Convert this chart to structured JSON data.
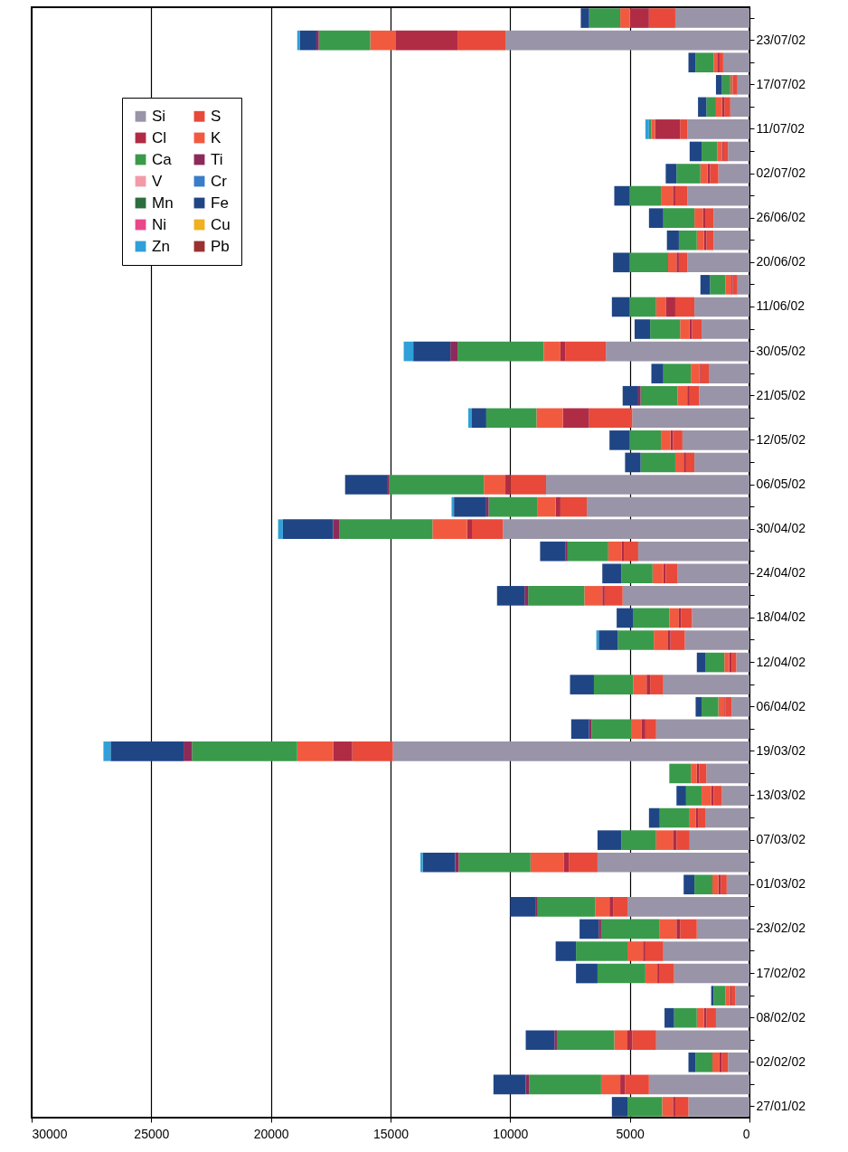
{
  "chart_data": {
    "type": "bar",
    "orientation": "horizontal",
    "stacked": true,
    "categories": [
      null,
      "23/07/02",
      null,
      "17/07/02",
      null,
      "11/07/02",
      null,
      "02/07/02",
      null,
      "26/06/02",
      null,
      "20/06/02",
      null,
      "11/06/02",
      null,
      "30/05/02",
      null,
      "21/05/02",
      null,
      "12/05/02",
      null,
      "06/05/02",
      null,
      "30/04/02",
      null,
      "24/04/02",
      null,
      "18/04/02",
      null,
      "12/04/02",
      null,
      "06/04/02",
      null,
      "19/03/02",
      null,
      "13/03/02",
      null,
      "07/03/02",
      null,
      "01/03/02",
      null,
      "23/02/02",
      null,
      "17/02/02",
      null,
      "08/02/02",
      null,
      "02/02/02",
      null,
      "27/01/02"
    ],
    "series": [
      {
        "name": "Si",
        "color": "#9a94a8",
        "values": [
          3100,
          10200,
          1100,
          500,
          800,
          2600,
          900,
          1300,
          2600,
          1500,
          1500,
          2600,
          500,
          2300,
          2000,
          6000,
          1700,
          2100,
          4900,
          2800,
          2300,
          8500,
          6800,
          10300,
          4650,
          3000,
          5300,
          2400,
          2700,
          550,
          3600,
          750,
          3900,
          14900,
          1800,
          1150,
          1850,
          2500,
          6350,
          950,
          5100,
          2200,
          3600,
          3150,
          600,
          1400,
          3900,
          900,
          4200,
          2550
        ]
      },
      {
        "name": "S",
        "color": "#e8493a",
        "values": [
          1100,
          2000,
          150,
          150,
          250,
          300,
          200,
          350,
          500,
          350,
          300,
          350,
          200,
          800,
          400,
          1700,
          350,
          400,
          1800,
          400,
          350,
          1500,
          1100,
          1300,
          600,
          500,
          750,
          450,
          600,
          200,
          550,
          250,
          450,
          1700,
          300,
          350,
          300,
          550,
          1200,
          250,
          600,
          700,
          750,
          600,
          150,
          400,
          1000,
          250,
          1000,
          550
        ]
      },
      {
        "name": "Cl",
        "color": "#b02c45",
        "values": [
          800,
          2600,
          100,
          50,
          100,
          1050,
          50,
          100,
          100,
          100,
          100,
          100,
          50,
          400,
          100,
          200,
          50,
          100,
          1100,
          100,
          100,
          200,
          200,
          200,
          100,
          100,
          100,
          100,
          100,
          100,
          150,
          50,
          150,
          800,
          100,
          100,
          100,
          150,
          200,
          100,
          150,
          150,
          100,
          100,
          50,
          100,
          200,
          100,
          200,
          100
        ]
      },
      {
        "name": "K",
        "color": "#f25a40",
        "values": [
          400,
          1050,
          150,
          100,
          250,
          150,
          200,
          300,
          500,
          350,
          300,
          350,
          250,
          400,
          400,
          700,
          350,
          400,
          1100,
          400,
          350,
          900,
          750,
          1450,
          550,
          450,
          750,
          400,
          600,
          200,
          550,
          250,
          450,
          1500,
          250,
          400,
          250,
          700,
          1400,
          250,
          600,
          700,
          650,
          500,
          200,
          300,
          550,
          300,
          800,
          450
        ]
      },
      {
        "name": "Ca",
        "color": "#3a9a4c",
        "values": [
          1300,
          2150,
          750,
          350,
          400,
          100,
          650,
          1000,
          1300,
          1300,
          750,
          1600,
          650,
          1100,
          1250,
          3600,
          1150,
          1550,
          2100,
          1300,
          1450,
          3950,
          2050,
          3900,
          1700,
          1300,
          2350,
          1500,
          1500,
          800,
          1650,
          700,
          1650,
          4400,
          900,
          650,
          1250,
          1450,
          3000,
          750,
          2400,
          2450,
          2150,
          2000,
          500,
          950,
          2400,
          700,
          3000,
          1450
        ]
      },
      {
        "name": "Ti",
        "color": "#8c2a5a",
        "values": [
          0,
          100,
          0,
          0,
          0,
          0,
          0,
          0,
          0,
          0,
          0,
          0,
          0,
          0,
          0,
          300,
          0,
          100,
          0,
          0,
          0,
          100,
          100,
          250,
          100,
          0,
          150,
          0,
          0,
          0,
          0,
          0,
          100,
          350,
          0,
          0,
          0,
          0,
          150,
          0,
          100,
          100,
          0,
          0,
          0,
          0,
          100,
          0,
          150,
          0
        ]
      },
      {
        "name": "V",
        "color": "#f29aa8",
        "values": [
          0,
          0,
          0,
          0,
          0,
          0,
          0,
          0,
          0,
          0,
          0,
          0,
          0,
          0,
          0,
          0,
          0,
          0,
          0,
          0,
          0,
          0,
          0,
          0,
          0,
          0,
          0,
          0,
          0,
          0,
          0,
          0,
          0,
          0,
          0,
          0,
          0,
          0,
          0,
          0,
          0,
          0,
          0,
          0,
          0,
          0,
          0,
          0,
          0,
          0
        ]
      },
      {
        "name": "Cr",
        "color": "#3a7cc8",
        "values": [
          0,
          0,
          0,
          0,
          0,
          0,
          0,
          0,
          0,
          0,
          0,
          0,
          0,
          0,
          0,
          0,
          0,
          0,
          0,
          0,
          0,
          0,
          0,
          0,
          0,
          0,
          0,
          0,
          0,
          0,
          0,
          0,
          0,
          0,
          0,
          0,
          0,
          0,
          0,
          0,
          0,
          0,
          0,
          0,
          0,
          0,
          0,
          0,
          0,
          0
        ]
      },
      {
        "name": "Mn",
        "color": "#2c6e3e",
        "values": [
          0,
          0,
          0,
          0,
          0,
          0,
          0,
          0,
          0,
          0,
          0,
          0,
          0,
          0,
          0,
          0,
          0,
          0,
          0,
          0,
          0,
          0,
          0,
          0,
          0,
          0,
          0,
          0,
          0,
          0,
          0,
          0,
          0,
          0,
          0,
          0,
          0,
          0,
          0,
          0,
          0,
          0,
          0,
          0,
          0,
          0,
          0,
          0,
          0,
          0
        ]
      },
      {
        "name": "Fe",
        "color": "#1f4585",
        "values": [
          350,
          700,
          300,
          250,
          350,
          0,
          500,
          450,
          650,
          600,
          500,
          700,
          400,
          750,
          650,
          1550,
          500,
          650,
          600,
          850,
          650,
          1750,
          1350,
          2100,
          1050,
          800,
          1150,
          700,
          800,
          350,
          1000,
          250,
          750,
          3050,
          0,
          400,
          450,
          1000,
          1350,
          450,
          1050,
          800,
          850,
          900,
          100,
          400,
          1200,
          300,
          1350,
          650
        ]
      },
      {
        "name": "Ni",
        "color": "#e8488a",
        "values": [
          0,
          0,
          0,
          0,
          0,
          0,
          0,
          0,
          0,
          0,
          0,
          0,
          0,
          0,
          0,
          0,
          0,
          0,
          0,
          0,
          0,
          0,
          0,
          0,
          0,
          0,
          0,
          0,
          0,
          0,
          0,
          0,
          0,
          0,
          0,
          0,
          0,
          0,
          0,
          0,
          0,
          0,
          0,
          0,
          0,
          0,
          0,
          0,
          0,
          0
        ]
      },
      {
        "name": "Cu",
        "color": "#f0b020",
        "values": [
          0,
          0,
          0,
          0,
          0,
          0,
          0,
          0,
          0,
          0,
          0,
          0,
          0,
          0,
          0,
          0,
          0,
          0,
          0,
          0,
          0,
          0,
          0,
          0,
          0,
          0,
          0,
          0,
          0,
          0,
          0,
          0,
          0,
          0,
          0,
          0,
          0,
          0,
          0,
          0,
          0,
          0,
          0,
          0,
          0,
          0,
          0,
          0,
          0,
          0
        ]
      },
      {
        "name": "Zn",
        "color": "#2fa0d8",
        "values": [
          0,
          100,
          0,
          0,
          0,
          150,
          0,
          0,
          0,
          0,
          0,
          0,
          0,
          0,
          0,
          400,
          0,
          0,
          150,
          0,
          0,
          0,
          100,
          200,
          0,
          0,
          0,
          0,
          100,
          0,
          0,
          0,
          0,
          300,
          0,
          0,
          0,
          0,
          100,
          0,
          0,
          0,
          0,
          0,
          0,
          0,
          0,
          0,
          0,
          0
        ]
      },
      {
        "name": "Pb",
        "color": "#9a3030",
        "values": [
          0,
          0,
          0,
          0,
          0,
          0,
          0,
          0,
          0,
          0,
          0,
          0,
          0,
          0,
          0,
          0,
          0,
          0,
          0,
          0,
          0,
          0,
          0,
          0,
          0,
          0,
          0,
          0,
          0,
          0,
          0,
          0,
          0,
          0,
          0,
          0,
          0,
          0,
          0,
          0,
          0,
          0,
          0,
          0,
          0,
          0,
          0,
          0,
          0,
          0
        ]
      }
    ],
    "xlim": [
      30000,
      0
    ],
    "xticks": [
      30000,
      25000,
      20000,
      15000,
      10000,
      5000,
      0
    ],
    "grid": "x",
    "legend": "top left"
  }
}
